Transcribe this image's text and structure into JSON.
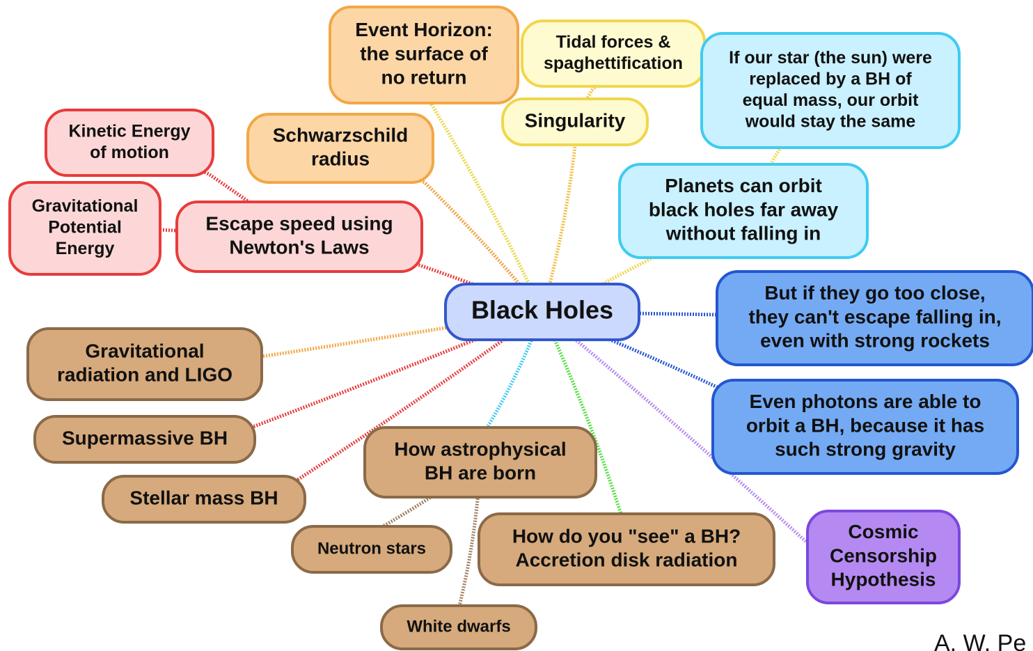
{
  "nodes": [
    {
      "lines": [
        "Black Holes"
      ]
    },
    {
      "lines": [
        "Event Horizon:",
        "the surface of",
        "no return"
      ]
    },
    {
      "lines": [
        "Tidal forces &",
        "spaghettification"
      ]
    },
    {
      "lines": [
        "Singularity"
      ]
    },
    {
      "lines": [
        "If our star (the sun) were",
        "replaced by a BH of",
        "equal mass, our orbit",
        "would stay the same"
      ]
    },
    {
      "lines": [
        "Schwarzschild",
        "radius"
      ]
    },
    {
      "lines": [
        "Kinetic Energy",
        "of motion"
      ]
    },
    {
      "lines": [
        "Gravitational",
        "Potential",
        "Energy"
      ]
    },
    {
      "lines": [
        "Escape speed using",
        "Newton's Laws"
      ]
    },
    {
      "lines": [
        "Planets can orbit",
        "black holes far away",
        "without falling in"
      ]
    },
    {
      "lines": [
        "But if they go too close,",
        "they can't escape falling in,",
        "even with strong rockets"
      ]
    },
    {
      "lines": [
        "Even photons are able to",
        "orbit a BH, because it has",
        "such strong gravity"
      ]
    },
    {
      "lines": [
        "Gravitational",
        "radiation and LIGO"
      ]
    },
    {
      "lines": [
        "Supermassive BH"
      ]
    },
    {
      "lines": [
        "Stellar mass BH"
      ]
    },
    {
      "lines": [
        "How astrophysical",
        "BH are born"
      ]
    },
    {
      "lines": [
        "Neutron stars"
      ]
    },
    {
      "lines": [
        "How do you \"see\" a BH?",
        "Accretion disk radiation"
      ]
    },
    {
      "lines": [
        "White dwarfs"
      ]
    },
    {
      "lines": [
        "Cosmic",
        "Censorship",
        "Hypothesis"
      ]
    }
  ],
  "credit": "A. W. Pe"
}
